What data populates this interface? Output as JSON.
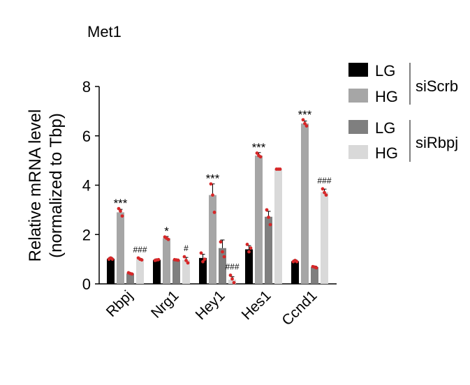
{
  "chart_data": {
    "type": "bar",
    "title": "Met1",
    "ylabel": "Relative mRNA level\n(normalized to Tbp)",
    "xlabel": "",
    "ylim": [
      0,
      8
    ],
    "yticks": [
      0,
      2,
      4,
      6,
      8
    ],
    "grid": false,
    "legend_position": "right",
    "categories": [
      "Rbpj",
      "Nrg1",
      "Hey1",
      "Hes1",
      "Ccnd1"
    ],
    "series": [
      {
        "name": "LG",
        "group": "siScrb",
        "color": "#000000",
        "values": [
          1.02,
          0.97,
          1.05,
          1.4,
          0.92
        ],
        "errors": [
          0.05,
          0.04,
          0.15,
          0.15,
          0.05
        ],
        "points": [
          [
            1.0,
            1.05,
            1.0
          ],
          [
            0.95,
            0.97,
            0.98
          ],
          [
            1.25,
            0.9,
            1.0
          ],
          [
            1.6,
            1.3,
            1.45
          ],
          [
            0.9,
            0.95,
            0.9
          ]
        ]
      },
      {
        "name": "HG",
        "group": "siScrb",
        "color": "#a6a6a6",
        "values": [
          2.9,
          1.85,
          3.6,
          5.2,
          6.5
        ],
        "errors": [
          0.12,
          0.07,
          0.45,
          0.12,
          0.1
        ],
        "points": [
          [
            3.05,
            2.95,
            2.75
          ],
          [
            1.9,
            1.85,
            1.8
          ],
          [
            4.05,
            3.6,
            2.9
          ],
          [
            5.3,
            5.2,
            5.15
          ],
          [
            6.65,
            6.5,
            6.4
          ]
        ]
      },
      {
        "name": "LG",
        "group": "siRbpj",
        "color": "#7f7f7f",
        "values": [
          0.42,
          0.97,
          1.45,
          2.72,
          0.68
        ],
        "errors": [
          0.03,
          0.02,
          0.33,
          0.22,
          0.04
        ],
        "points": [
          [
            0.45,
            0.42,
            0.4
          ],
          [
            0.98,
            0.97,
            0.96
          ],
          [
            1.7,
            1.3,
            1.1
          ],
          [
            3.0,
            2.7,
            2.4
          ],
          [
            0.7,
            0.68,
            0.65
          ]
        ]
      },
      {
        "name": "HG",
        "group": "siRbpj",
        "color": "#d9d9d9",
        "values": [
          1.0,
          0.97,
          0.17,
          4.65,
          3.72
        ],
        "errors": [
          0.03,
          0.1,
          0.12,
          0.02,
          0.12
        ],
        "points": [
          [
            1.05,
            1.0,
            0.97
          ],
          [
            1.1,
            0.95,
            0.85
          ],
          [
            0.35,
            0.2,
            0.05
          ],
          [
            4.65,
            4.65,
            4.65
          ],
          [
            3.85,
            3.7,
            3.6
          ]
        ]
      }
    ],
    "annotations": [
      {
        "category": "Rbpj",
        "series": 1,
        "text": "***"
      },
      {
        "category": "Rbpj",
        "series": 3,
        "text": "###"
      },
      {
        "category": "Nrg1",
        "series": 1,
        "text": "*"
      },
      {
        "category": "Nrg1",
        "series": 3,
        "text": "#"
      },
      {
        "category": "Hey1",
        "series": 1,
        "text": "***"
      },
      {
        "category": "Hey1",
        "series": 3,
        "text": "###"
      },
      {
        "category": "Hes1",
        "series": 1,
        "text": "***"
      },
      {
        "category": "Ccnd1",
        "series": 1,
        "text": "***"
      },
      {
        "category": "Ccnd1",
        "series": 3,
        "text": "###"
      }
    ],
    "legend_groups": [
      "siScrb",
      "siRbpj"
    ],
    "point_color": "#d62728"
  }
}
